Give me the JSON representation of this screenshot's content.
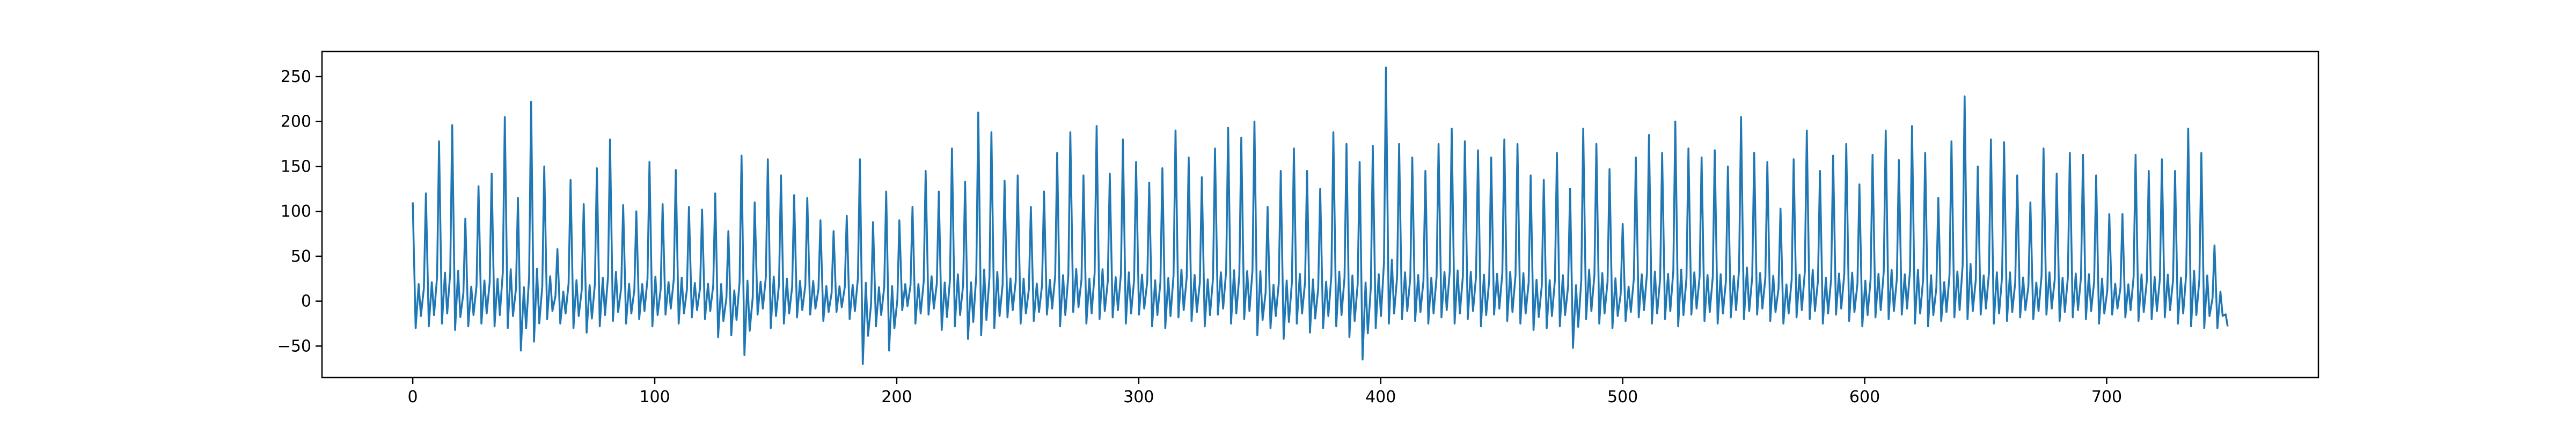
{
  "chart_data": {
    "type": "line",
    "title": "",
    "xlabel": "",
    "ylabel": "",
    "xlim": [
      -37.5,
      787.5
    ],
    "ylim": [
      -85,
      278
    ],
    "xticks": [
      0,
      100,
      200,
      300,
      400,
      500,
      600,
      700
    ],
    "yticks": [
      -50,
      0,
      50,
      100,
      150,
      200,
      250
    ],
    "xtick_labels": [
      "0",
      "100",
      "200",
      "300",
      "400",
      "500",
      "600",
      "700"
    ],
    "ytick_labels": [
      "−50",
      "0",
      "50",
      "100",
      "150",
      "200",
      "250"
    ],
    "grid": false,
    "legend": "none",
    "series": [
      {
        "color": "#1f77b4",
        "x_start": 0,
        "x_step": 1,
        "peaks": [
          110,
          120,
          178,
          196,
          92,
          128,
          142,
          205,
          115,
          222,
          150,
          58,
          135,
          108,
          148,
          180,
          107,
          100,
          155,
          108,
          146,
          105,
          102,
          120,
          78,
          162,
          110,
          158,
          140,
          118,
          115,
          90,
          78,
          95,
          158,
          88,
          122,
          90,
          105,
          145,
          122,
          170,
          133,
          210,
          188,
          134,
          140,
          105,
          122,
          165,
          188,
          140,
          195,
          142,
          180,
          155,
          132,
          148,
          190,
          160,
          138,
          170,
          193,
          182,
          200,
          105,
          145,
          170,
          145,
          125,
          188,
          175,
          155,
          173,
          260,
          175,
          160,
          145,
          175,
          192,
          178,
          168,
          160,
          180,
          175,
          140,
          135,
          165,
          125,
          192,
          175,
          147,
          86,
          160,
          185,
          165,
          200,
          170,
          160,
          168,
          150,
          205,
          165,
          155,
          103,
          158,
          190,
          145,
          162,
          175,
          130,
          163,
          190,
          157,
          195,
          165,
          115,
          178,
          228,
          150,
          180,
          177,
          140,
          110,
          170,
          142,
          165,
          163,
          140,
          97,
          97,
          163,
          145,
          158,
          145,
          192,
          165,
          62
        ],
        "troughs": [
          -30,
          -28,
          -25,
          -32,
          -28,
          -25,
          -28,
          -30,
          -55,
          -45,
          -20,
          -25,
          -30,
          -35,
          -28,
          -22,
          -25,
          -20,
          -28,
          -15,
          -25,
          -18,
          -20,
          -40,
          -38,
          -60,
          -15,
          -30,
          -25,
          -18,
          -15,
          -22,
          -12,
          -20,
          -70,
          -28,
          -55,
          -10,
          -25,
          -15,
          -32,
          -28,
          -42,
          -38,
          -30,
          -18,
          -25,
          -22,
          -15,
          -28,
          -12,
          -25,
          -20,
          -18,
          -25,
          -15,
          -28,
          -30,
          -18,
          -22,
          -28,
          -15,
          -25,
          -20,
          -38,
          -30,
          -42,
          -25,
          -35,
          -30,
          -28,
          -40,
          -65,
          -30,
          -25,
          -20,
          -22,
          -25,
          -18,
          -25,
          -20,
          -28,
          -15,
          -22,
          -25,
          -32,
          -30,
          -28,
          -52,
          -20,
          -25,
          -30,
          -22,
          -18,
          -25,
          -20,
          -28,
          -15,
          -22,
          -25,
          -18,
          -20,
          -15,
          -22,
          -25,
          -18,
          -20,
          -25,
          -15,
          -22,
          -28,
          -18,
          -20,
          -15,
          -25,
          -28,
          -22,
          -18,
          -20,
          -15,
          -25,
          -22,
          -18,
          -20,
          -15,
          -22,
          -18,
          -20,
          -25,
          -15,
          -18,
          -22,
          -20,
          -18,
          -25,
          -28,
          -30
        ],
        "final": -28
      }
    ]
  }
}
